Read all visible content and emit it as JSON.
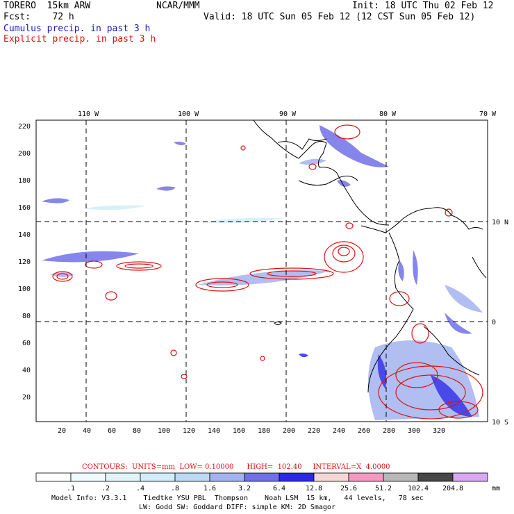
{
  "header": {
    "model": "TORERO  15km ARW",
    "org": "NCAR/MMM",
    "init": "Init: 18 UTC Thu 02 Feb 12",
    "fcst": "Fcst:    72 h",
    "valid": "Valid: 18 UTC Sun 05 Feb 12 (12 CST Sun 05 Feb 12)",
    "cumulus": "Cumulus precip. in past 3 h",
    "explicit": "Explicit precip. in past 3 h"
  },
  "axes": {
    "lon_labels": [
      "110 W",
      "100 W",
      "90 W",
      "80 W",
      "70 W"
    ],
    "lat_labels": [
      "10 N",
      "0",
      "10 S"
    ],
    "y_ticks": [
      "220",
      "200",
      "180",
      "160",
      "140",
      "120",
      "100",
      "80",
      "60",
      "40",
      "20"
    ],
    "x_ticks": [
      "20",
      "40",
      "60",
      "80",
      "100",
      "120",
      "140",
      "160",
      "180",
      "200",
      "220",
      "240",
      "260",
      "280",
      "300",
      "320"
    ]
  },
  "contour_info": {
    "label": "CONTOURS:  UNITS=mm  LOW= 0.10000      HIGH=  102.40     INTERVAL=X  4.0000"
  },
  "legend": {
    "unit": "mm",
    "values": [
      ".1",
      ".2",
      ".4",
      ".8",
      "1.6",
      "3.2",
      "6.4",
      "12.8",
      "25.6",
      "51.2",
      "102.4",
      "204.8"
    ],
    "colors": [
      "#ffffff",
      "#f0fbff",
      "#e1f5f9",
      "#cfeefa",
      "#bcd9f5",
      "#a3b3ef",
      "#7070e8",
      "#2a2ae6",
      "#f7d6d6",
      "#f49ac1",
      "#b8b8b8",
      "#474747",
      "#d9a8f0"
    ]
  },
  "footer": {
    "line1": "Model Info: V3.3.1    Tiedtke YSU PBL  Thompson    Noah LSM  15 km,   44 levels,   78 sec",
    "line2": "LW: Godd SW: Goddard DIFF: simple KM: 2D Smagor"
  }
}
